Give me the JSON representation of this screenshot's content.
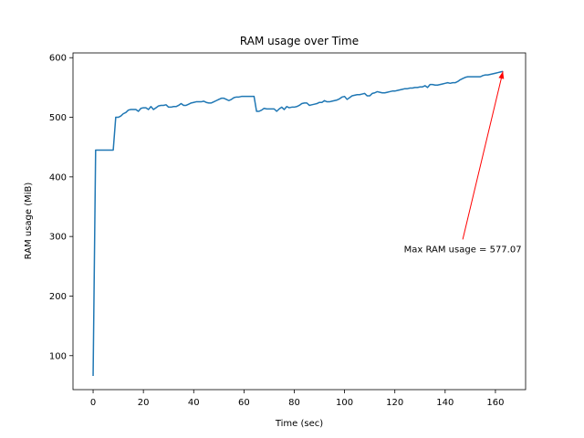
{
  "chart_data": {
    "type": "line",
    "title": "RAM usage over Time",
    "xlabel": "Time (sec)",
    "ylabel": "RAM usage (MiB)",
    "xlim": [
      -8,
      172
    ],
    "ylim": [
      43,
      608
    ],
    "xticks": [
      0,
      20,
      40,
      60,
      80,
      100,
      120,
      140,
      160
    ],
    "yticks": [
      100,
      200,
      300,
      400,
      500,
      600
    ],
    "grid": false,
    "series": [
      {
        "color": "#1f77b4",
        "x": [
          0,
          1,
          2,
          3,
          4,
          5,
          6,
          7,
          8,
          9,
          10,
          11,
          12,
          13,
          14,
          15,
          16,
          17,
          18,
          19,
          20,
          21,
          22,
          23,
          24,
          25,
          26,
          27,
          28,
          29,
          30,
          31,
          32,
          33,
          34,
          35,
          36,
          37,
          38,
          39,
          40,
          41,
          42,
          43,
          44,
          45,
          46,
          47,
          48,
          49,
          50,
          51,
          52,
          53,
          54,
          55,
          56,
          57,
          58,
          59,
          60,
          61,
          62,
          63,
          64,
          65,
          66,
          67,
          68,
          69,
          70,
          71,
          72,
          73,
          74,
          75,
          76,
          77,
          78,
          79,
          80,
          81,
          82,
          83,
          84,
          85,
          86,
          87,
          88,
          89,
          90,
          91,
          92,
          93,
          94,
          95,
          96,
          97,
          98,
          99,
          100,
          101,
          102,
          103,
          104,
          105,
          106,
          107,
          108,
          109,
          110,
          111,
          112,
          113,
          114,
          115,
          116,
          117,
          118,
          119,
          120,
          121,
          122,
          123,
          124,
          125,
          126,
          127,
          128,
          129,
          130,
          131,
          132,
          133,
          134,
          135,
          136,
          137,
          138,
          139,
          140,
          141,
          142,
          143,
          144,
          145,
          146,
          147,
          148,
          149,
          150,
          151,
          152,
          153,
          154,
          155,
          156,
          157,
          158,
          159,
          160,
          161,
          162,
          163
        ],
        "y": [
          66,
          445,
          445,
          445,
          445,
          445,
          445,
          445,
          445,
          500,
          500,
          502,
          506,
          508,
          512,
          513,
          513,
          513,
          510,
          515,
          516,
          516,
          513,
          518,
          513,
          516,
          519,
          520,
          520,
          521,
          517,
          517,
          518,
          518,
          520,
          523,
          520,
          520,
          522,
          524,
          525,
          526,
          526,
          526,
          527,
          525,
          524,
          524,
          526,
          528,
          530,
          532,
          532,
          530,
          528,
          530,
          533,
          534,
          534,
          535,
          535,
          535,
          535,
          535,
          535,
          510,
          510,
          512,
          515,
          514,
          514,
          514,
          514,
          510,
          514,
          517,
          513,
          518,
          516,
          517,
          517,
          518,
          520,
          523,
          524,
          524,
          520,
          521,
          522,
          523,
          525,
          525,
          528,
          526,
          526,
          527,
          528,
          529,
          531,
          534,
          535,
          530,
          533,
          536,
          537,
          538,
          538,
          539,
          540,
          536,
          536,
          540,
          541,
          543,
          542,
          541,
          541,
          542,
          543,
          544,
          544,
          545,
          546,
          547,
          548,
          548,
          549,
          549,
          550,
          550,
          551,
          551,
          553,
          550,
          555,
          555,
          554,
          554,
          555,
          556,
          557,
          558,
          557,
          558,
          558,
          560,
          563,
          565,
          567,
          568,
          568,
          568,
          568,
          568,
          568,
          570,
          571,
          571,
          572,
          573,
          574,
          575,
          576,
          577
        ]
      }
    ],
    "annotation": {
      "text": "Max RAM usage = 577.07",
      "color": "#ff0000",
      "point": [
        163,
        577.07
      ],
      "text_anchor_point": [
        147,
        295
      ]
    }
  }
}
